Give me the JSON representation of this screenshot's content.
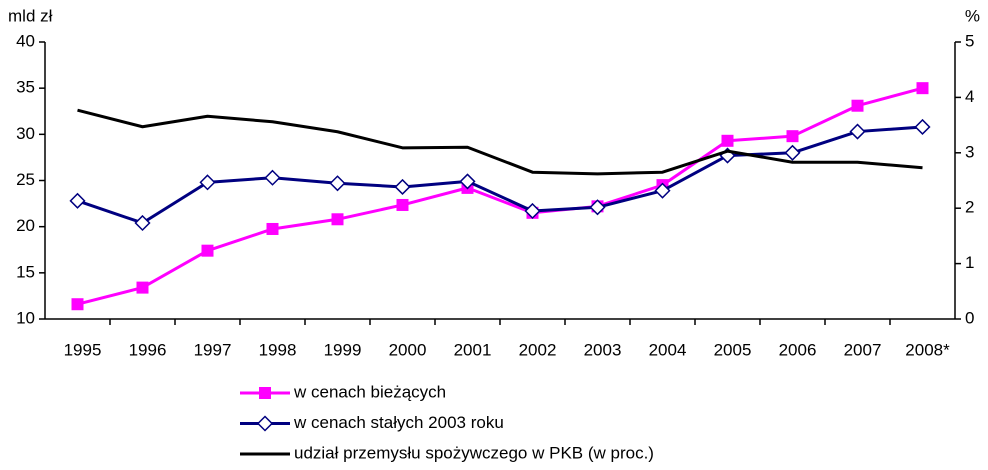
{
  "chart_data": {
    "type": "line",
    "y_label": "mld zł",
    "y2_label": "%",
    "categories": [
      "1995",
      "1996",
      "1997",
      "1998",
      "1999",
      "2000",
      "2001",
      "2002",
      "2003",
      "2004",
      "2005",
      "2006",
      "2007",
      "2008*"
    ],
    "series": [
      {
        "name": "w cenach bieżących",
        "color": "#ff00ff",
        "marker": "square",
        "values": [
          11.6,
          13.4,
          17.4,
          19.75,
          20.8,
          22.35,
          24.2,
          21.5,
          22.2,
          24.5,
          29.3,
          29.8,
          33.1,
          35.0
        ]
      },
      {
        "name": "w cenach stałych 2003 roku",
        "color": "#000080",
        "marker": "diamond",
        "values": [
          22.8,
          20.4,
          24.8,
          25.3,
          24.7,
          24.3,
          24.9,
          21.7,
          22.1,
          23.9,
          27.7,
          28.0,
          30.3,
          30.8
        ]
      },
      {
        "name": "udział przemysłu spożywczego w PKB (w proc.)",
        "color": "#000000",
        "axis": "y2",
        "values": [
          3.77,
          3.47,
          3.66,
          3.56,
          3.38,
          3.09,
          3.1,
          2.65,
          2.62,
          2.65,
          3.03,
          2.83,
          2.83,
          2.73
        ]
      }
    ],
    "ylim": [
      10,
      40
    ],
    "yticks": [
      10,
      15,
      20,
      25,
      30,
      35,
      40
    ],
    "y2lim": [
      0,
      5
    ],
    "y2ticks": [
      0,
      1,
      2,
      3,
      4,
      5
    ],
    "grid": false,
    "legend": "bottom"
  }
}
